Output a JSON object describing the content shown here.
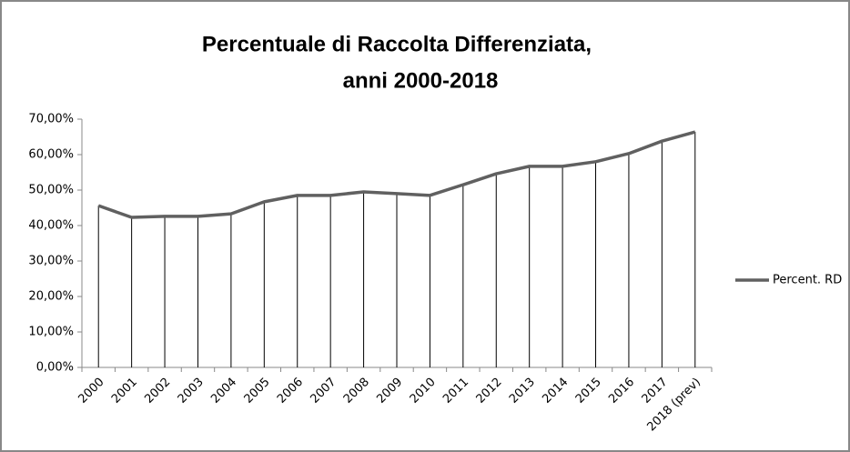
{
  "chart_data": {
    "type": "line",
    "title": [
      "Percentuale di Raccolta Differenziata,",
      "anni 2000-2018"
    ],
    "categories": [
      "2000",
      "2001",
      "2002",
      "2003",
      "2004",
      "2005",
      "2006",
      "2007",
      "2008",
      "2009",
      "2010",
      "2011",
      "2012",
      "2013",
      "2014",
      "2015",
      "2016",
      "2017",
      "2018 (prev)"
    ],
    "series": [
      {
        "name": "Percent. RD",
        "color": "#606060",
        "values": [
          45.6,
          42.3,
          42.6,
          42.6,
          43.3,
          46.7,
          48.5,
          48.5,
          49.5,
          49.0,
          48.5,
          51.5,
          54.6,
          56.7,
          56.7,
          58.0,
          60.3,
          63.8,
          66.4
        ]
      }
    ],
    "ylim": [
      0,
      70
    ],
    "yticks": [
      {
        "value": 0,
        "label": "0,00%"
      },
      {
        "value": 10,
        "label": "10,00%"
      },
      {
        "value": 20,
        "label": "20,00%"
      },
      {
        "value": 30,
        "label": "30,00%"
      },
      {
        "value": 40,
        "label": "40,00%"
      },
      {
        "value": 50,
        "label": "50,00%"
      },
      {
        "value": 60,
        "label": "60,00%"
      },
      {
        "value": 70,
        "label": "70,00%"
      }
    ],
    "drop_lines": true,
    "legend": "right"
  }
}
